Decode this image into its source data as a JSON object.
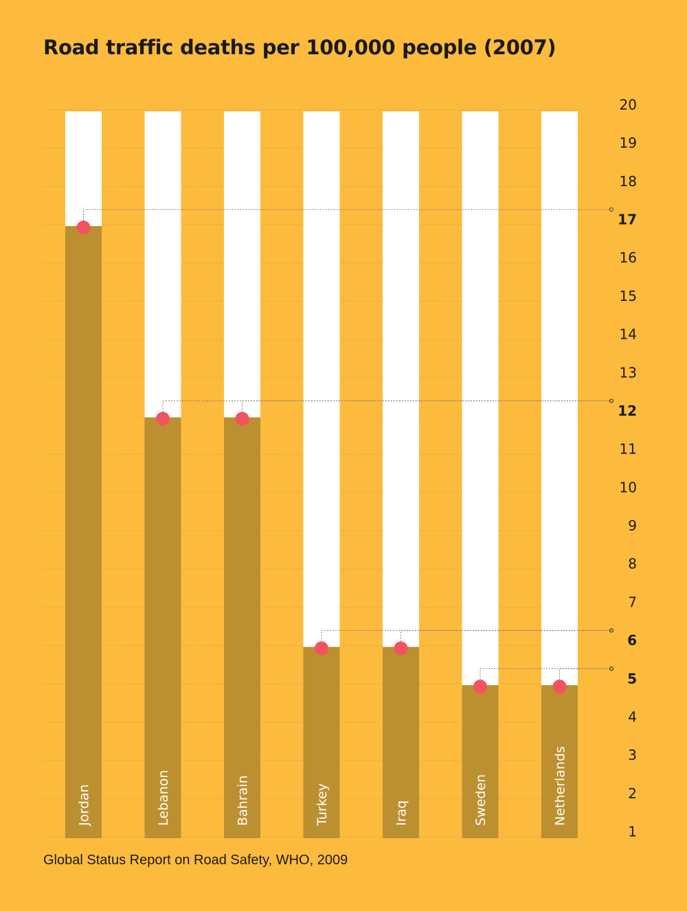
{
  "title": "Road traffic deaths per 100,000 people (2007)",
  "source": "Global Status Report on Road Safety, WHO, 2009",
  "colors": {
    "background": "#FDBB3E",
    "bar_fill": "#BC8F30",
    "bar_track": "#FFFFFF",
    "marker": "#F2535E",
    "leader": "#8a7a5a",
    "text": "#1a1a1a"
  },
  "chart_data": {
    "type": "bar",
    "categories": [
      "Jordan",
      "Lebanon",
      "Bahrain",
      "Turkey",
      "Iraq",
      "Sweden",
      "Netherlands"
    ],
    "values": [
      17,
      12,
      12,
      6,
      6,
      5,
      5
    ],
    "ylim": [
      1,
      20
    ],
    "yticks": [
      1,
      2,
      3,
      4,
      5,
      6,
      7,
      8,
      9,
      10,
      11,
      12,
      13,
      14,
      15,
      16,
      17,
      18,
      19,
      20
    ],
    "highlighted_ticks": [
      17,
      12,
      6,
      5
    ],
    "grid": true,
    "axis_position": "right"
  }
}
